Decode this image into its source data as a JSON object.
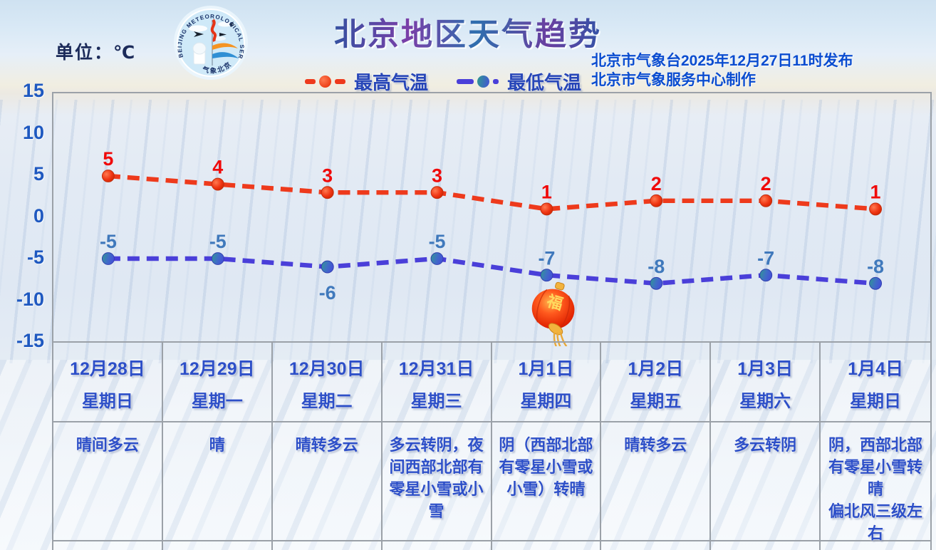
{
  "header": {
    "unit_label": "单位：℃",
    "title": "北京地区天气趋势",
    "issue_line1": "北京市气象台2025年12月27日11时发布",
    "issue_line2": "北京市气象服务中心制作",
    "logo": {
      "ring_text_top": "BEIJING METEOROLOGICAL SERVICE",
      "ring_text_bottom": "气象北京"
    }
  },
  "legend": {
    "high_label": "最高气温",
    "low_label": "最低气温"
  },
  "colors": {
    "high_line": "#ee3a1c",
    "high_label_text": "#f00a0a",
    "low_line": "#4a3fd9",
    "low_label_text": "#4079bc",
    "axis_text": "#1e58c0",
    "table_text": "#2d4fc8",
    "issue_text": "#0a4cd0",
    "border_gray": "#9ba1a8"
  },
  "chart_data": {
    "type": "line",
    "title": "北京地区天气趋势",
    "unit": "℃",
    "x": [
      "12月28日",
      "12月29日",
      "12月30日",
      "12月31日",
      "1月1日",
      "1月2日",
      "1月3日",
      "1月4日"
    ],
    "series": [
      {
        "name": "最高气温",
        "values": [
          5,
          4,
          3,
          3,
          1,
          2,
          2,
          1
        ],
        "color": "#ee3a1c",
        "style": "dashed",
        "labels_below": []
      },
      {
        "name": "最低气温",
        "values": [
          -5,
          -5,
          -6,
          -5,
          -7,
          -8,
          -7,
          -8
        ],
        "color": "#4a3fd9",
        "style": "dashed",
        "labels_below": [
          2
        ]
      }
    ],
    "ylim": [
      -15,
      15
    ],
    "yticks": [
      15,
      10,
      5,
      0,
      -5,
      -10,
      -15
    ],
    "grid": false,
    "legend_position": "top-center"
  },
  "table": {
    "days": [
      {
        "date": "12月28日",
        "weekday": "星期日",
        "weather": "晴间多云"
      },
      {
        "date": "12月29日",
        "weekday": "星期一",
        "weather": "晴"
      },
      {
        "date": "12月30日",
        "weekday": "星期二",
        "weather": "晴转多云"
      },
      {
        "date": "12月31日",
        "weekday": "星期三",
        "weather": "多云转阴，夜间西部北部有零星小雪或小雪"
      },
      {
        "date": "1月1日",
        "weekday": "星期四",
        "weather": "阴（西部北部有零星小雪或小雪）转晴"
      },
      {
        "date": "1月2日",
        "weekday": "星期五",
        "weather": "晴转多云"
      },
      {
        "date": "1月3日",
        "weekday": "星期六",
        "weather": "多云转阴"
      },
      {
        "date": "1月4日",
        "weekday": "星期日",
        "weather": "阴，西部北部有零星小雪转晴\n偏北风三级左右"
      }
    ]
  },
  "decor": {
    "lantern_char": "福"
  }
}
